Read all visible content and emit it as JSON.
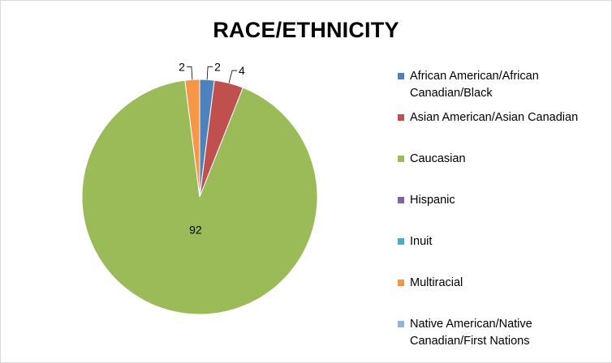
{
  "chart_data": {
    "type": "pie",
    "title": "RACE/ETHNICITY",
    "categories": [
      "African American/African Canadian/Black",
      "Asian American/Asian Canadian",
      "Caucasian",
      "Hispanic",
      "Inuit",
      "Multiracial",
      "Native American/Native Canadian/First Nations"
    ],
    "values": [
      2,
      4,
      92,
      0,
      0,
      2,
      0
    ],
    "data_labels": [
      "2",
      "4",
      "92",
      "",
      "",
      "2",
      ""
    ],
    "colors": [
      "#4F81BD",
      "#C0504D",
      "#9BBB59",
      "#8064A2",
      "#4BACC6",
      "#F79646",
      "#95B3D7"
    ],
    "legend": {
      "position": "right",
      "lines": [
        [
          "African American/African",
          "Canadian/Black"
        ],
        [
          "Asian American/Asian Canadian"
        ],
        [
          "Caucasian"
        ],
        [
          "Hispanic"
        ],
        [
          "Inuit"
        ],
        [
          "Multiracial"
        ],
        [
          "Native American/Native",
          "Canadian/First Nations"
        ]
      ]
    }
  }
}
